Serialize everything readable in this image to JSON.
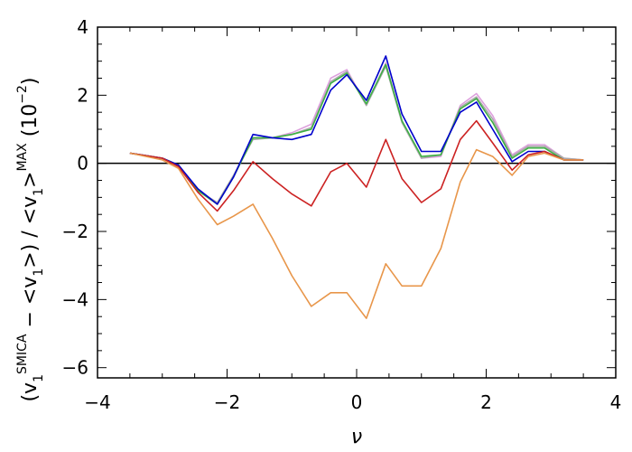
{
  "chart_data": {
    "type": "line",
    "title": "",
    "xlabel": "ν",
    "ylabel_parts": {
      "open": "(v",
      "sub1": "1",
      "sup1": "SMICA",
      "mid": " − <v",
      "sub2": "1",
      "mid2": ">) / <v",
      "sub3": "1",
      "gt": ">",
      "sup2": "MAX",
      "unit_open": " (10",
      "unit_exp": "−2",
      "unit_close": ")"
    },
    "xlim": [
      -4,
      4
    ],
    "ylim": [
      -6.3,
      4.0
    ],
    "x_ticks": [
      -4,
      -2,
      0,
      2,
      4
    ],
    "x_tick_labels": [
      "−4",
      "−2",
      "0",
      "2",
      "4"
    ],
    "y_ticks": [
      -6,
      -4,
      -2,
      0,
      2,
      4
    ],
    "y_tick_labels": [
      "−6",
      "−4",
      "−2",
      "0",
      "2",
      "4"
    ],
    "x_minor_step": 0.5,
    "y_minor_step": 0.5,
    "zero_line": true,
    "grid": false,
    "x": [
      -3.5,
      -3.0,
      -2.75,
      -2.45,
      -2.15,
      -1.9,
      -1.6,
      -1.3,
      -1.0,
      -0.7,
      -0.4,
      -0.15,
      0.15,
      0.45,
      0.7,
      1.0,
      1.3,
      1.6,
      1.85,
      2.1,
      2.4,
      2.65,
      2.9,
      3.2,
      3.5
    ],
    "series": [
      {
        "color": "#dda0dd",
        "values": [
          0.3,
          0.15,
          -0.05,
          -0.8,
          -1.2,
          -0.4,
          0.75,
          0.75,
          0.9,
          1.15,
          2.5,
          2.75,
          1.7,
          2.95,
          1.25,
          0.15,
          0.2,
          1.7,
          2.05,
          1.4,
          0.25,
          0.55,
          0.55,
          0.15,
          0.1
        ]
      },
      {
        "color": "#a9a9a9",
        "values": [
          0.3,
          0.15,
          -0.05,
          -0.8,
          -1.15,
          -0.35,
          0.7,
          0.75,
          0.85,
          1.05,
          2.4,
          2.7,
          1.7,
          2.85,
          1.2,
          0.15,
          0.25,
          1.65,
          1.95,
          1.3,
          0.2,
          0.5,
          0.5,
          0.15,
          0.1
        ]
      },
      {
        "color": "#3cb043",
        "values": [
          0.3,
          0.15,
          -0.05,
          -0.8,
          -1.2,
          -0.4,
          0.75,
          0.75,
          0.85,
          1.0,
          2.35,
          2.65,
          1.75,
          2.9,
          1.25,
          0.2,
          0.25,
          1.6,
          1.9,
          1.2,
          0.15,
          0.45,
          0.45,
          0.1,
          0.1
        ]
      },
      {
        "color": "#0000cc",
        "values": [
          0.3,
          0.15,
          -0.05,
          -0.75,
          -1.2,
          -0.4,
          0.85,
          0.75,
          0.7,
          0.85,
          2.15,
          2.6,
          1.85,
          3.15,
          1.45,
          0.35,
          0.35,
          1.5,
          1.8,
          1.0,
          0.05,
          0.35,
          0.35,
          0.1,
          0.1
        ]
      },
      {
        "color": "#cc2222",
        "values": [
          0.3,
          0.15,
          -0.1,
          -0.85,
          -1.4,
          -0.8,
          0.05,
          -0.45,
          -0.9,
          -1.25,
          -0.25,
          0.0,
          -0.7,
          0.7,
          -0.45,
          -1.15,
          -0.75,
          0.7,
          1.25,
          0.6,
          -0.2,
          0.25,
          0.35,
          0.1,
          0.1
        ]
      },
      {
        "color": "#e8964a",
        "values": [
          0.3,
          0.1,
          -0.15,
          -1.05,
          -1.8,
          -1.55,
          -1.2,
          -2.2,
          -3.3,
          -4.2,
          -3.8,
          -3.8,
          -4.55,
          -2.95,
          -3.6,
          -3.6,
          -2.5,
          -0.55,
          0.4,
          0.2,
          -0.35,
          0.2,
          0.3,
          0.1,
          0.1
        ]
      }
    ]
  }
}
